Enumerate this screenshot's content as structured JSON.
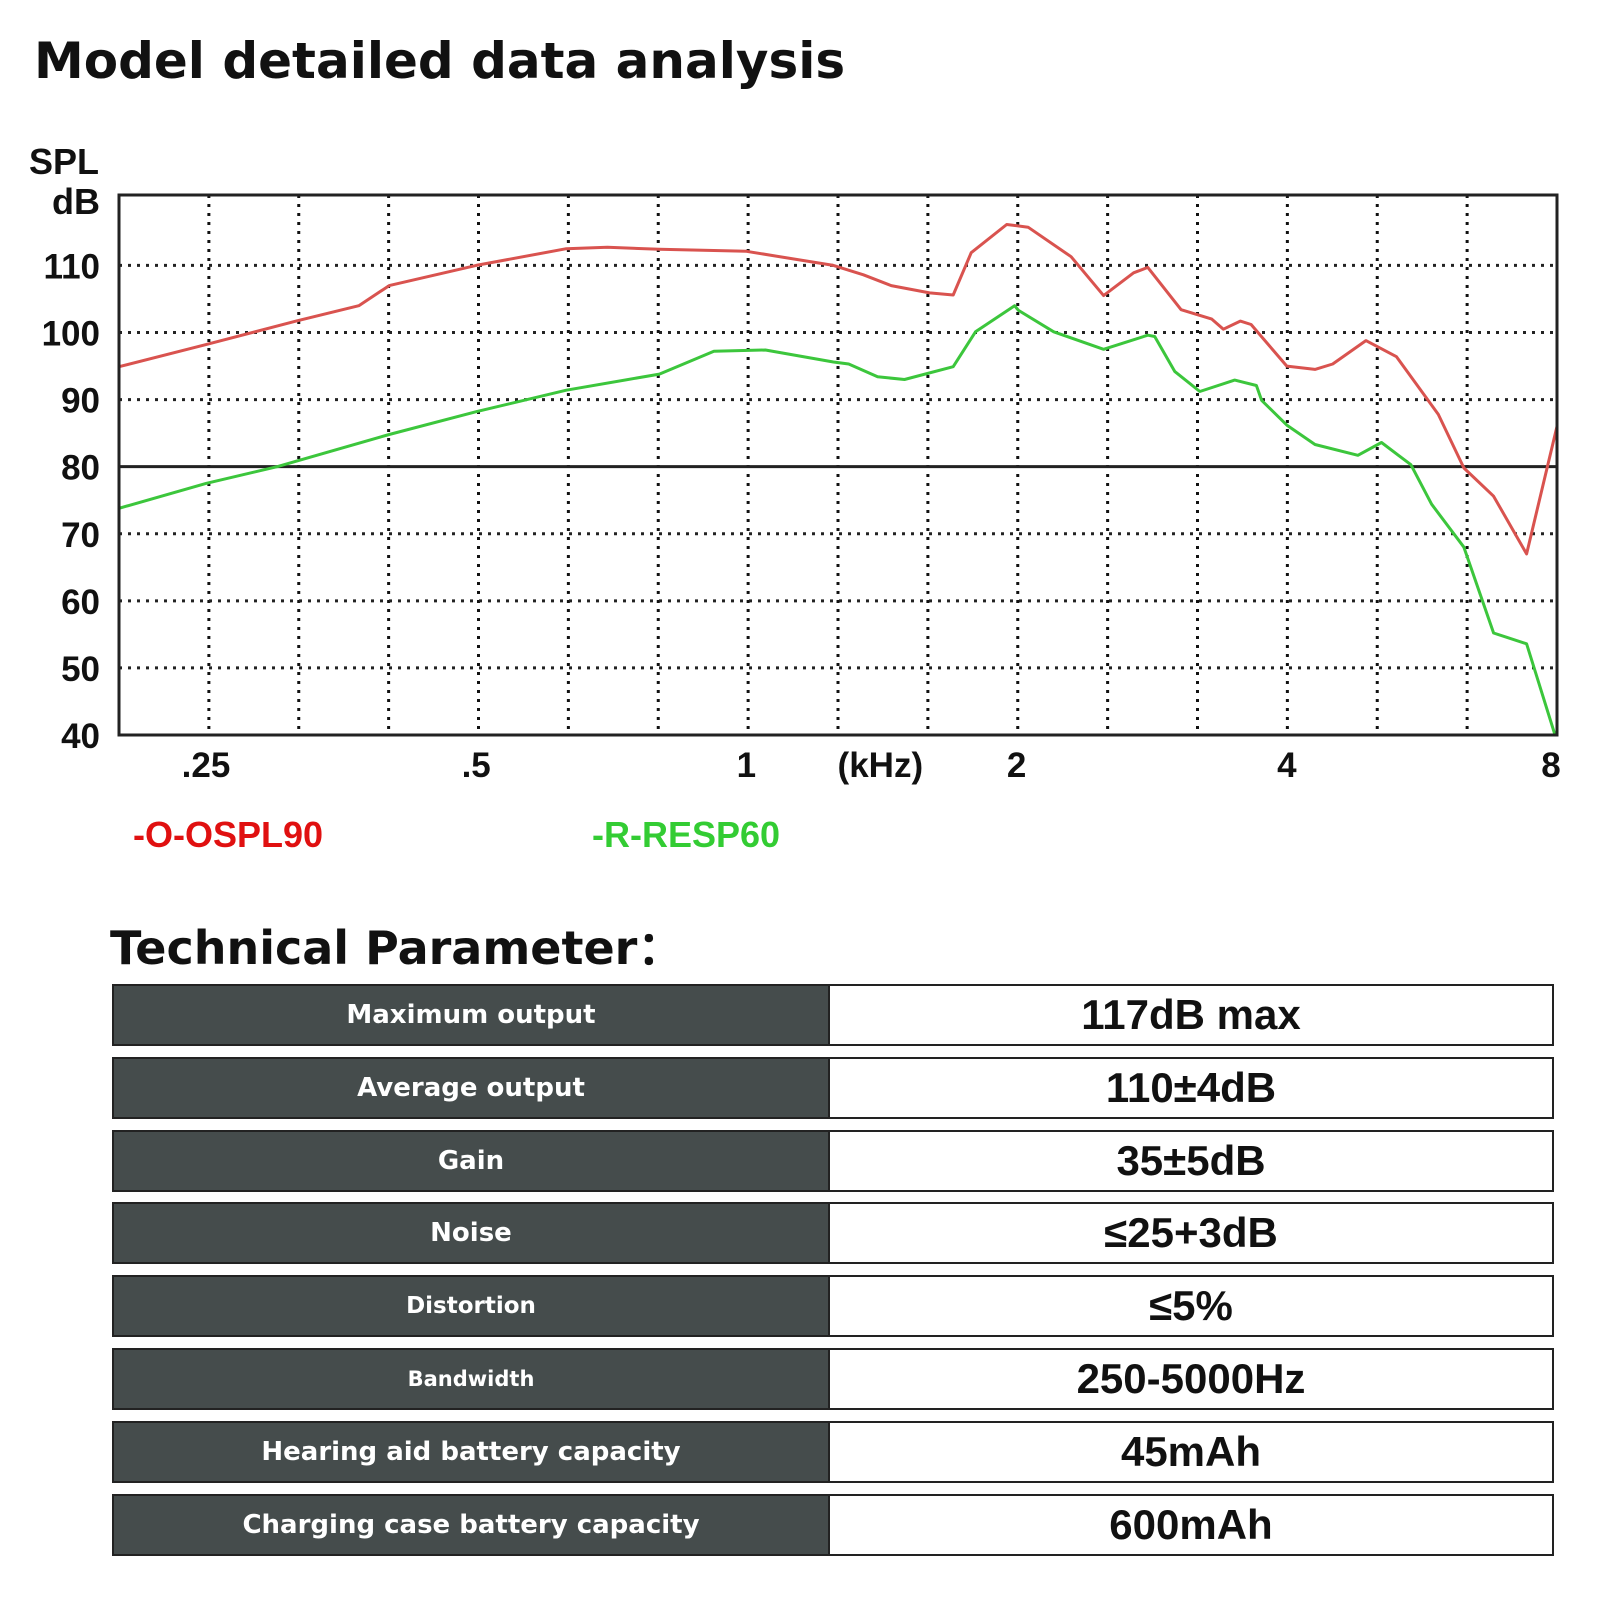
{
  "header": {
    "title": "Model detailed data analysis"
  },
  "chart_data": {
    "type": "line",
    "title": "",
    "ylabel": [
      "SPL",
      "dB"
    ],
    "xlabel": "(kHz)",
    "x_scale": "log",
    "xlim": [
      0.2,
      8
    ],
    "ylim": [
      40,
      120.5
    ],
    "yticks": [
      40,
      50,
      60,
      70,
      80,
      90,
      100,
      110
    ],
    "xticks": [
      {
        "value": 0.25,
        "label": ".25"
      },
      {
        "value": 0.5,
        "label": ".5"
      },
      {
        "value": 1,
        "label": "1"
      },
      {
        "value": 2,
        "label": "2"
      },
      {
        "value": 4,
        "label": "4"
      },
      {
        "value": 8,
        "label": "8"
      }
    ],
    "grid": true,
    "reference_line": 80,
    "legend_position": "bottom-left",
    "series": [
      {
        "name": "-O-OSPL90",
        "color": "#d9534f",
        "legend_color": "#e01010",
        "points": [
          [
            0.2,
            94.9
          ],
          [
            0.25,
            98.2
          ],
          [
            0.315,
            101.7
          ],
          [
            0.37,
            104
          ],
          [
            0.4,
            107
          ],
          [
            0.5,
            110
          ],
          [
            0.63,
            112.5
          ],
          [
            0.7,
            112.7
          ],
          [
            0.8,
            112.4
          ],
          [
            1.0,
            112.1
          ],
          [
            1.25,
            110
          ],
          [
            1.35,
            108.6
          ],
          [
            1.45,
            107
          ],
          [
            1.6,
            105.9
          ],
          [
            1.7,
            105.6
          ],
          [
            1.78,
            111.9
          ],
          [
            1.95,
            116.1
          ],
          [
            2.06,
            115.7
          ],
          [
            2.3,
            111.3
          ],
          [
            2.5,
            105.5
          ],
          [
            2.7,
            108.9
          ],
          [
            2.8,
            109.7
          ],
          [
            3.05,
            103.4
          ],
          [
            3.3,
            102
          ],
          [
            3.4,
            100.5
          ],
          [
            3.55,
            101.7
          ],
          [
            3.65,
            101.2
          ],
          [
            4.0,
            95
          ],
          [
            4.3,
            94.5
          ],
          [
            4.5,
            95.3
          ],
          [
            4.9,
            98.8
          ],
          [
            5.3,
            96.4
          ],
          [
            5.9,
            87.8
          ],
          [
            6.3,
            79.8
          ],
          [
            6.8,
            75.6
          ],
          [
            7.4,
            67
          ],
          [
            8.0,
            86
          ]
        ]
      },
      {
        "name": "-R-RESP60",
        "color": "#3cc63c",
        "legend_color": "#33cc33",
        "points": [
          [
            0.2,
            73.8
          ],
          [
            0.25,
            77.5
          ],
          [
            0.3,
            80
          ],
          [
            0.4,
            84.8
          ],
          [
            0.5,
            88.2
          ],
          [
            0.63,
            91.4
          ],
          [
            0.8,
            93.8
          ],
          [
            0.92,
            97.2
          ],
          [
            1.05,
            97.4
          ],
          [
            1.25,
            95.6
          ],
          [
            1.3,
            95.3
          ],
          [
            1.4,
            93.4
          ],
          [
            1.5,
            93
          ],
          [
            1.7,
            94.9
          ],
          [
            1.8,
            100.1
          ],
          [
            1.99,
            104
          ],
          [
            2.01,
            103.3
          ],
          [
            2.2,
            100.1
          ],
          [
            2.5,
            97.5
          ],
          [
            2.8,
            99.6
          ],
          [
            2.85,
            99.4
          ],
          [
            3.0,
            94.2
          ],
          [
            3.2,
            91.2
          ],
          [
            3.5,
            92.9
          ],
          [
            3.7,
            92.1
          ],
          [
            3.75,
            89.9
          ],
          [
            4.0,
            86.2
          ],
          [
            4.3,
            83.3
          ],
          [
            4.8,
            81.7
          ],
          [
            5.1,
            83.6
          ],
          [
            5.5,
            80.3
          ],
          [
            5.8,
            74.4
          ],
          [
            6.3,
            68
          ],
          [
            6.8,
            55.2
          ],
          [
            7.4,
            53.6
          ],
          [
            7.95,
            40.2
          ]
        ]
      }
    ]
  },
  "params": {
    "title": "Technical Parameter：",
    "rows": [
      {
        "label": "Maximum output",
        "value": "117dB max"
      },
      {
        "label": "Average output",
        "value": "110±4dB"
      },
      {
        "label": "Gain",
        "value": "35±5dB"
      },
      {
        "label": "Noise",
        "value": "≤25+3dB"
      },
      {
        "label": "Distortion",
        "value": "≤5%"
      },
      {
        "label": "Bandwidth",
        "value": "250-5000Hz"
      },
      {
        "label": "Hearing aid battery capacity",
        "value": "45mAh"
      },
      {
        "label": "Charging case battery capacity",
        "value": "600mAh"
      }
    ]
  }
}
